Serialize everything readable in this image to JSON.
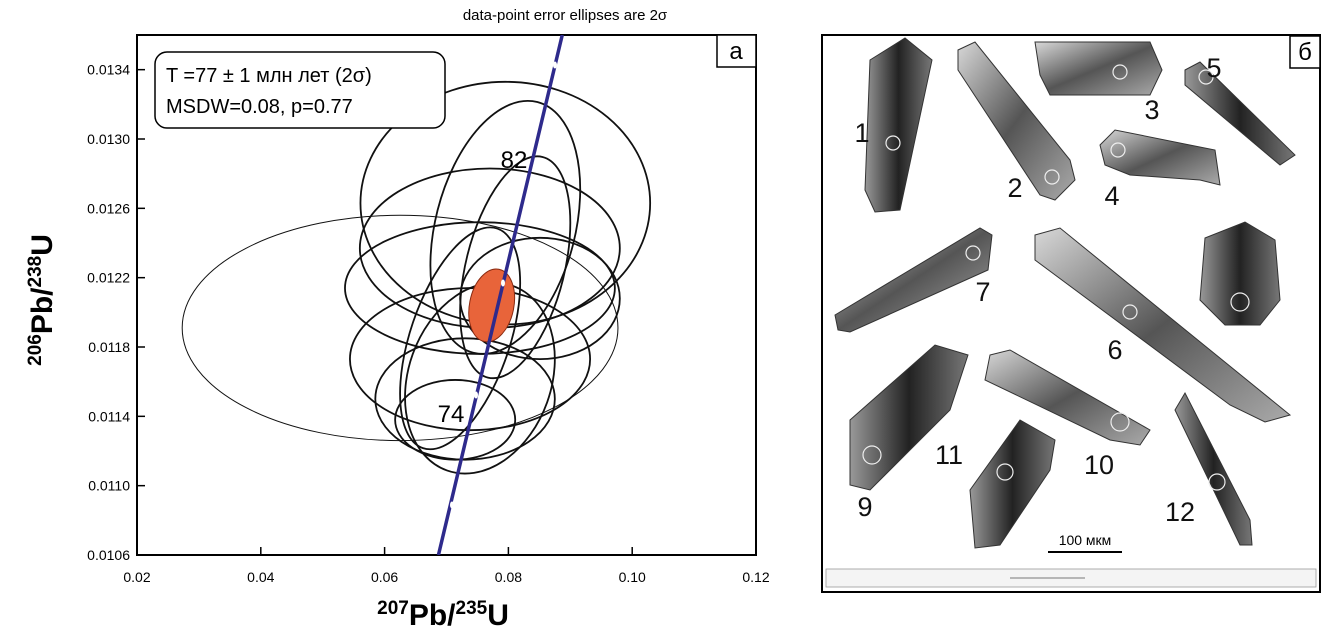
{
  "chart_data": {
    "type": "concordia",
    "title": "data-point error ellipses are 2σ",
    "panel_label": "а",
    "result_lines": [
      "T =77 ± 1 млн лет (2σ)",
      "MSDW=0.08, p=0.77"
    ],
    "xlabel": [
      "207",
      "Pb/",
      "235",
      "U"
    ],
    "ylabel": [
      "206",
      "Pb/",
      "238",
      "U"
    ],
    "xlim": [
      0.02,
      0.12
    ],
    "xticks": [
      0.02,
      0.04,
      0.06,
      0.08,
      {
        "value": 0.1,
        "label": "0.10"
      },
      0.12
    ],
    "ylim": [
      0.0106,
      0.0136
    ],
    "yticks": [
      0.0106,
      {
        "value": 0.011,
        "label": "0.0110"
      },
      0.0114,
      0.0118,
      0.0122,
      0.0126,
      {
        "value": 0.013,
        "label": "0.0130"
      },
      0.0134
    ],
    "ellipses": {
      "color": "#111111",
      "x": [
        0.0625,
        0.0795,
        0.0795,
        0.077,
        0.0754,
        0.0738,
        0.0754,
        0.073,
        0.0722,
        0.0811,
        0.0714,
        0.0851
      ],
      "y": [
        0.01191,
        0.01263,
        0.01249,
        0.01237,
        0.01214,
        0.01173,
        0.01162,
        0.0115,
        0.01185,
        0.01226,
        0.01138,
        0.01208
      ],
      "x_err": [
        0.0352,
        0.0234,
        0.0121,
        0.021,
        0.0218,
        0.0194,
        0.0121,
        0.0145,
        0.0097,
        0.0089,
        0.0097,
        0.0129
      ],
      "y_err": [
        0.00065,
        0.0007,
        0.00073,
        0.00046,
        0.00038,
        0.00041,
        0.00055,
        0.00035,
        0.00064,
        0.00064,
        0.00023,
        0.00035
      ],
      "rho": [
        0,
        0,
        0.3,
        0,
        0,
        0,
        0.2,
        0,
        0.5,
        0.4,
        0,
        0
      ]
    },
    "weighted_mean": {
      "color": "#e8643a",
      "x": 0.0773,
      "y": 0.01204,
      "x_err": 0.0037,
      "y_err": 0.00021,
      "rho": 0.2
    },
    "concordia": {
      "color": "#2e2a8c",
      "x": [
        0.0687,
        0.0887
      ],
      "y": [
        0.0106,
        0.0136
      ]
    },
    "age_labels": [
      "82",
      "74"
    ]
  },
  "image_panel": {
    "label": "б",
    "grain_labels": [
      "1",
      "2",
      "3",
      "4",
      "5",
      "6",
      "7",
      "9",
      "10",
      "11",
      "12"
    ],
    "scale_bar": "100 мкм"
  }
}
